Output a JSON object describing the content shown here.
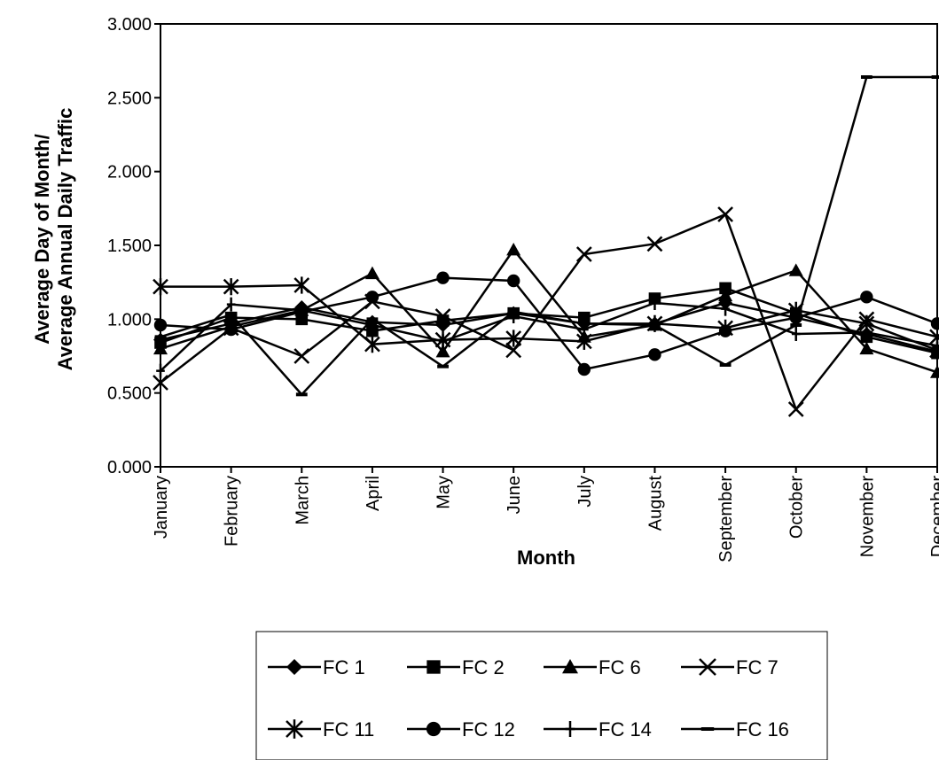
{
  "chart_data": {
    "type": "line",
    "title": "",
    "xlabel": "Month",
    "ylabel": [
      "Average Day of Month/",
      "Average Annual Daily Traffic"
    ],
    "categories": [
      "January",
      "February",
      "March",
      "April",
      "May",
      "June",
      "July",
      "August",
      "September",
      "October",
      "November",
      "December"
    ],
    "ylim": [
      0,
      3
    ],
    "yticks": [
      "0.000",
      "0.500",
      "1.000",
      "1.500",
      "2.000",
      "2.500",
      "3.000"
    ],
    "grid": false,
    "legend_position": "bottom",
    "series": [
      {
        "name": "FC 1",
        "marker": "diamond",
        "values": [
          0.86,
          0.97,
          1.08,
          0.98,
          0.96,
          1.04,
          0.97,
          0.97,
          1.11,
          1.01,
          0.9,
          0.78
        ]
      },
      {
        "name": "FC 2",
        "marker": "square",
        "values": [
          0.84,
          1.01,
          1.0,
          0.92,
          0.99,
          1.04,
          1.01,
          1.14,
          1.21,
          1.04,
          0.88,
          0.77
        ]
      },
      {
        "name": "FC 6",
        "marker": "triangle",
        "values": [
          0.8,
          0.95,
          1.06,
          1.31,
          0.78,
          1.47,
          0.88,
          0.96,
          1.16,
          1.33,
          0.8,
          0.64
        ]
      },
      {
        "name": "FC 7",
        "marker": "x",
        "values": [
          0.57,
          0.94,
          0.75,
          1.12,
          1.02,
          0.79,
          1.44,
          1.51,
          1.71,
          0.39,
          1.0,
          0.88
        ]
      },
      {
        "name": "FC 11",
        "marker": "star",
        "values": [
          1.22,
          1.22,
          1.23,
          0.83,
          0.86,
          0.87,
          0.85,
          0.97,
          0.94,
          1.06,
          0.97,
          0.79
        ]
      },
      {
        "name": "FC 12",
        "marker": "circle",
        "values": [
          0.96,
          0.93,
          1.05,
          1.15,
          1.28,
          1.26,
          0.66,
          0.76,
          0.92,
          1.01,
          1.15,
          0.97
        ]
      },
      {
        "name": "FC 14",
        "marker": "plus",
        "values": [
          0.65,
          1.1,
          1.06,
          0.96,
          0.85,
          1.02,
          0.93,
          1.11,
          1.07,
          0.9,
          0.91,
          0.82
        ]
      },
      {
        "name": "FC 16",
        "marker": "dash",
        "values": [
          0.88,
          1.03,
          0.49,
          1.0,
          0.68,
          1.05,
          0.97,
          0.96,
          0.69,
          0.96,
          2.64,
          2.64
        ]
      }
    ]
  }
}
